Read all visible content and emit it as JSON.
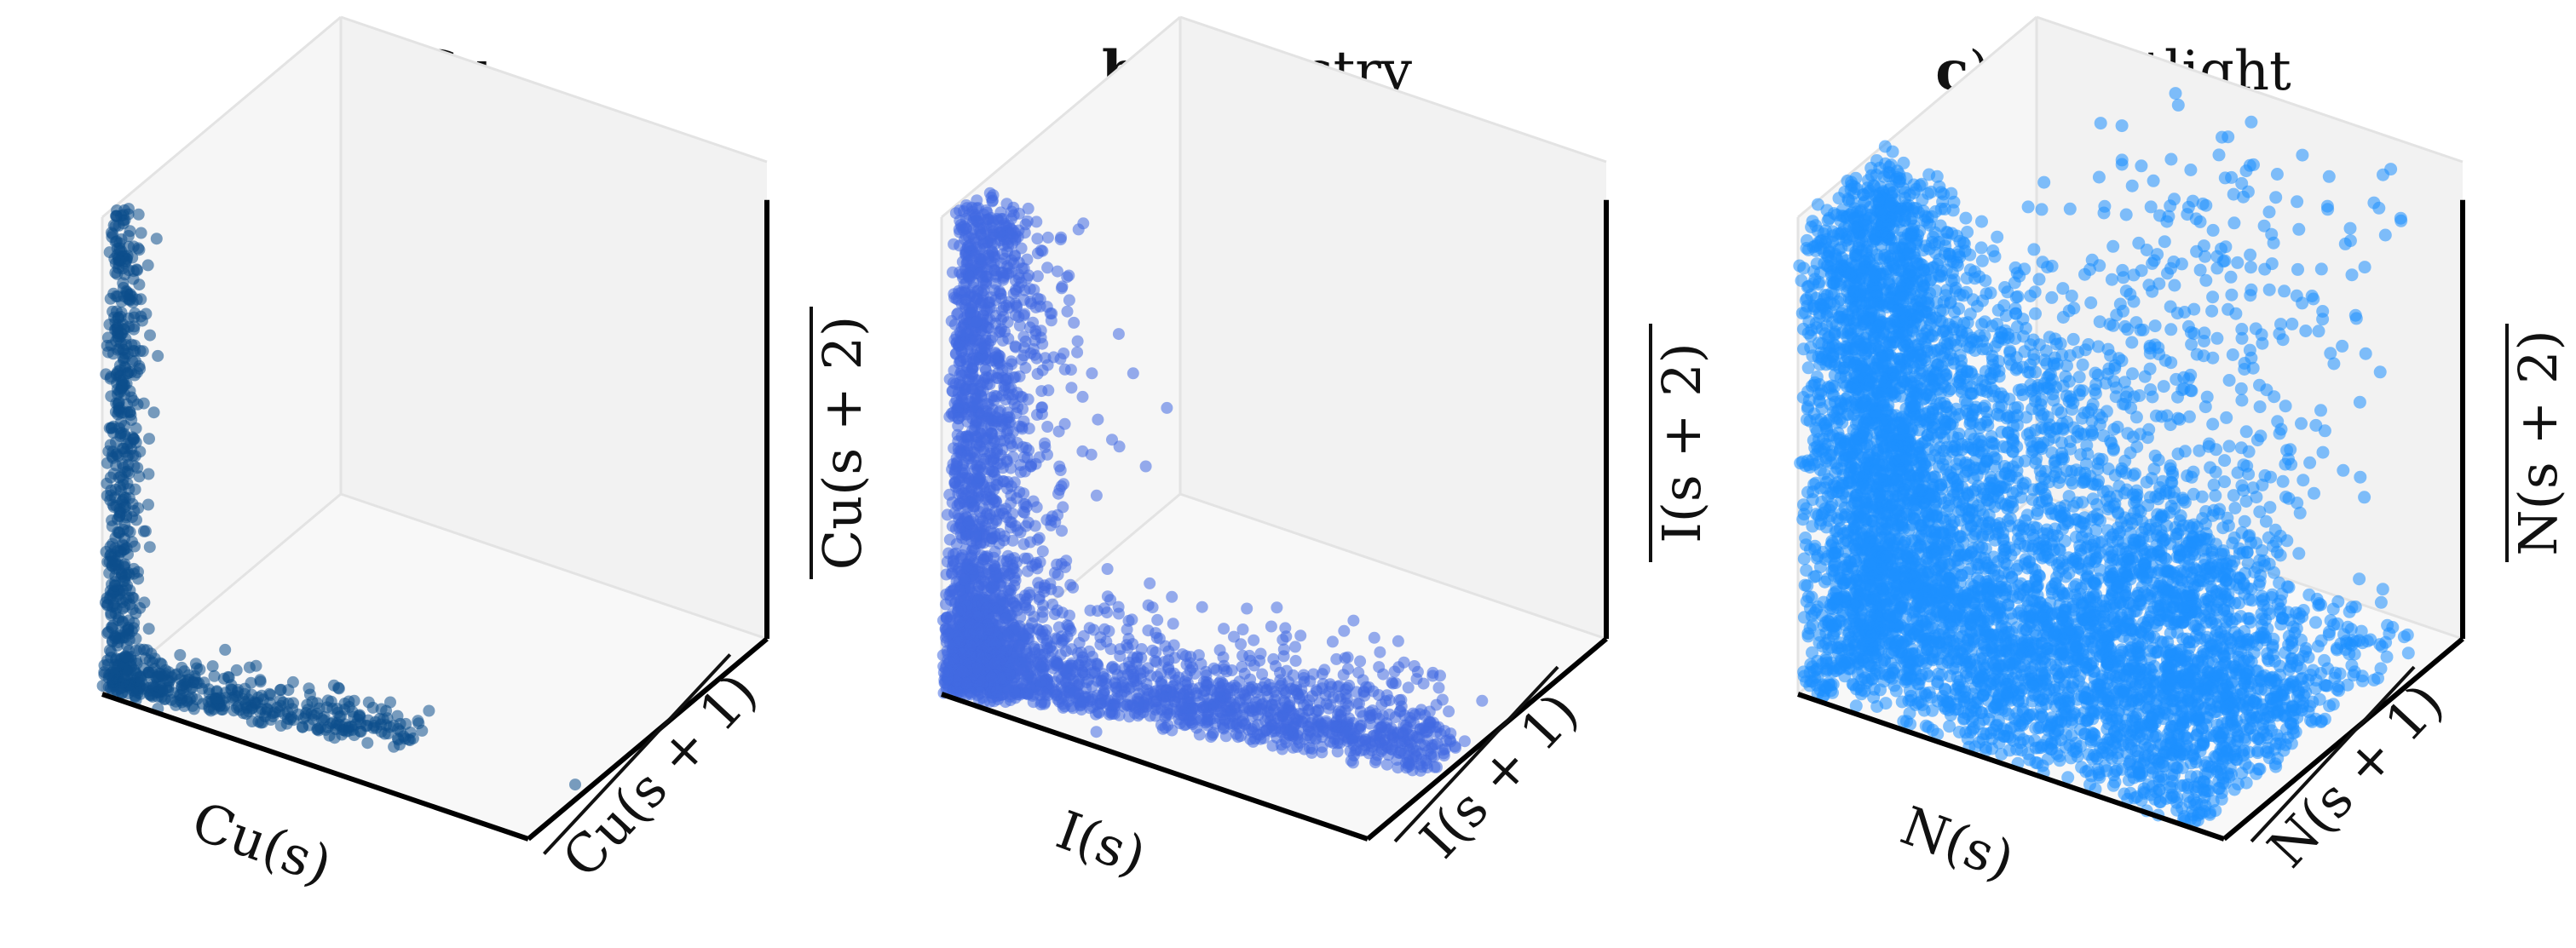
{
  "chart_data": [
    {
      "type": "scatter",
      "panel_letter": "a",
      "title": "Cu",
      "xlabel": "Cu(s)",
      "ylabel": "Cu(s + 1)",
      "zlabel": "Cu(s + 2)",
      "y_overline": true,
      "z_overline": true,
      "color": "#0d4f8c",
      "n_points": 900,
      "distribution": "L-shaped: dense vertical arm along z near x=0,y=0; horizontal arm along x near z=0; one outlier",
      "x_range": [
        0,
        1
      ],
      "y_range": [
        0,
        1
      ],
      "z_range": [
        0,
        1
      ],
      "outliers": [
        {
          "x": 0.97,
          "y": 0.25,
          "z": 0.0
        }
      ]
    },
    {
      "type": "scatter",
      "panel_letter": "b",
      "title": "Industry",
      "xlabel": "I(s)",
      "ylabel": "I(s + 1)",
      "zlabel": "I(s + 2)",
      "y_overline": true,
      "z_overline": true,
      "color": "#4169e1",
      "n_points": 3200,
      "distribution": "L-shaped with wide spread: vertical arm along z and horizontal arm along x, dense near origin",
      "x_range": [
        0,
        1
      ],
      "y_range": [
        0,
        1
      ],
      "z_range": [
        0,
        1
      ],
      "outliers": []
    },
    {
      "type": "scatter",
      "panel_letter": "c",
      "title": "Nightlight",
      "xlabel": "N(s)",
      "ylabel": "N(s + 1)",
      "zlabel": "N(s + 2)",
      "y_overline": true,
      "z_overline": true,
      "color": "#1e90ff",
      "n_points": 6500,
      "distribution": "very dense filled wedge near origin, arms along z and x, sparse points in upper region",
      "x_range": [
        0,
        1
      ],
      "y_range": [
        0,
        1
      ],
      "z_range": [
        0,
        1
      ],
      "outliers": []
    }
  ]
}
